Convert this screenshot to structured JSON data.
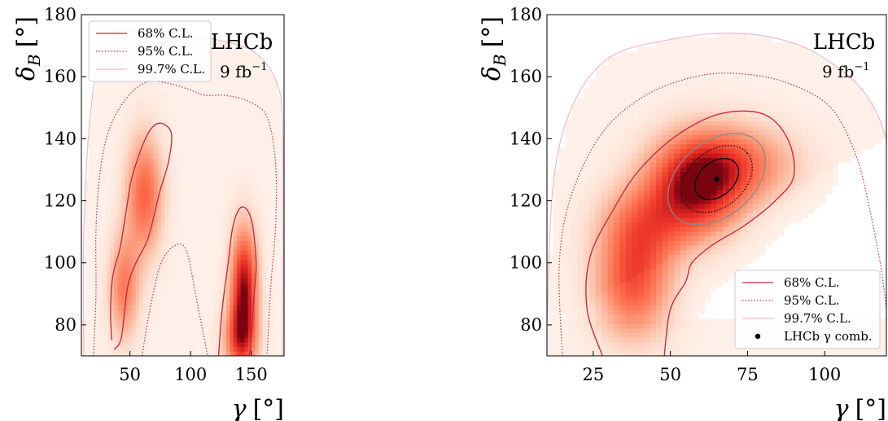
{
  "chart_data": [
    {
      "type": "heatmap",
      "panel": "left",
      "x_symbol": "γ",
      "x_unit": "[°]",
      "y_symbol": "δ",
      "y_subscript": "B",
      "y_unit": "[°]",
      "xlim": [
        10,
        177
      ],
      "ylim": [
        70,
        180
      ],
      "xticks": [
        50,
        100,
        150
      ],
      "yticks": [
        80,
        100,
        120,
        140,
        160,
        180
      ],
      "experiment": "LHCb",
      "luminosity": "9 fb",
      "luminosity_exp": "−1",
      "legend_position": "upper-left",
      "legend": [
        {
          "label": "68% C.L.",
          "style": "solid",
          "color": "#c8243c"
        },
        {
          "label": "95% C.L.",
          "style": "dotted",
          "color": "#c8243c"
        },
        {
          "label": "99.7% C.L.",
          "style": "solid",
          "color": "#f5b8c8"
        }
      ],
      "peaks": [
        {
          "x": 62,
          "y": 122,
          "sx": 11,
          "sy": 14,
          "w": 0.62
        },
        {
          "x": 45,
          "y": 92,
          "sx": 9,
          "sy": 12,
          "w": 0.52
        },
        {
          "x": 144,
          "y": 92,
          "sx": 8,
          "sy": 14,
          "w": 0.95
        },
        {
          "x": 140,
          "y": 75,
          "sx": 10,
          "sy": 8,
          "w": 0.55
        }
      ],
      "contours": {
        "cl68": [
          [
            [
              37,
              72
            ],
            [
              43,
              76
            ],
            [
              48,
              92
            ],
            [
              55,
              100
            ],
            [
              65,
              108
            ],
            [
              74,
              122
            ],
            [
              82,
              133
            ],
            [
              84,
              142
            ],
            [
              74,
              145
            ],
            [
              64,
              141
            ],
            [
              52,
              128
            ],
            [
              47,
              117
            ],
            [
              42,
              105
            ],
            [
              36,
              96
            ],
            [
              34,
              85
            ],
            [
              35,
              75
            ]
          ],
          [
            [
              123,
              70
            ],
            [
              126,
              85
            ],
            [
              131,
              100
            ],
            [
              135,
              112
            ],
            [
              142,
              118
            ],
            [
              150,
              114
            ],
            [
              154,
              100
            ],
            [
              152,
              88
            ],
            [
              150,
              75
            ],
            [
              148,
              70
            ]
          ]
        ],
        "cl95": [
          [
            [
              20,
              70
            ],
            [
              22,
              90
            ],
            [
              22,
              110
            ],
            [
              25,
              128
            ],
            [
              32,
              142
            ],
            [
              45,
              152
            ],
            [
              62,
              158
            ],
            [
              80,
              158
            ],
            [
              98,
              156
            ],
            [
              112,
              154
            ],
            [
              128,
              154
            ],
            [
              148,
              152
            ],
            [
              163,
              147
            ],
            [
              170,
              132
            ],
            [
              170,
              112
            ],
            [
              166,
              92
            ],
            [
              163,
              70
            ]
          ],
          [
            [
              60,
              70
            ],
            [
              66,
              84
            ],
            [
              74,
              98
            ],
            [
              82,
              104
            ],
            [
              92,
              106
            ],
            [
              98,
              102
            ],
            [
              104,
              90
            ],
            [
              110,
              78
            ],
            [
              114,
              70
            ]
          ]
        ],
        "cl997": [
          [
            [
              12,
              70
            ],
            [
              12,
              110
            ],
            [
              18,
              150
            ],
            [
              30,
              172
            ],
            [
              50,
              175
            ],
            [
              80,
              174
            ],
            [
              120,
              172
            ],
            [
              152,
              168
            ],
            [
              171,
              158
            ],
            [
              176,
              140
            ],
            [
              176,
              70
            ]
          ]
        ]
      }
    },
    {
      "type": "heatmap",
      "panel": "right",
      "x_symbol": "γ",
      "x_unit": "[°]",
      "y_symbol": "δ",
      "y_subscript": "B",
      "y_unit": "[°]",
      "xlim": [
        10,
        120
      ],
      "ylim": [
        70,
        180
      ],
      "xticks": [
        25,
        50,
        75,
        100
      ],
      "yticks": [
        80,
        100,
        120,
        140,
        160,
        180
      ],
      "experiment": "LHCb",
      "luminosity": "9 fb",
      "luminosity_exp": "−1",
      "legend_position": "lower-right",
      "legend": [
        {
          "label": "68% C.L.",
          "style": "solid",
          "color": "#c8243c"
        },
        {
          "label": "95% C.L.",
          "style": "dotted",
          "color": "#c8243c"
        },
        {
          "label": "99.7% C.L.",
          "style": "solid",
          "color": "#f5b8c8"
        },
        {
          "label": "LHCb γ comb.",
          "style": "marker",
          "color": "#000000"
        }
      ],
      "peaks": [
        {
          "x": 58,
          "y": 124,
          "sx": 11,
          "sy": 12,
          "w": 0.85
        },
        {
          "x": 38,
          "y": 92,
          "sx": 9,
          "sy": 12,
          "w": 0.65
        },
        {
          "x": 72,
          "y": 132,
          "sx": 14,
          "sy": 9,
          "w": 0.5
        },
        {
          "x": 40,
          "y": 112,
          "sx": 10,
          "sy": 10,
          "w": 0.45
        }
      ],
      "contours": {
        "cl68": [
          [
            [
              28,
              70
            ],
            [
              23,
              85
            ],
            [
              24,
              102
            ],
            [
              32,
              118
            ],
            [
              40,
              130
            ],
            [
              52,
              141
            ],
            [
              66,
              148
            ],
            [
              80,
              148
            ],
            [
              88,
              140
            ],
            [
              90,
              128
            ],
            [
              84,
              120
            ],
            [
              74,
              112
            ],
            [
              64,
              106
            ],
            [
              57,
              100
            ],
            [
              55,
              94
            ],
            [
              50,
              85
            ],
            [
              48,
              70
            ]
          ]
        ],
        "cl95": [
          [
            [
              15,
              70
            ],
            [
              14,
              100
            ],
            [
              18,
              122
            ],
            [
              28,
              142
            ],
            [
              42,
              154
            ],
            [
              58,
              160
            ],
            [
              72,
              161
            ],
            [
              88,
              158
            ],
            [
              102,
              150
            ],
            [
              110,
              135
            ],
            [
              114,
              120
            ],
            [
              118,
              100
            ],
            [
              120,
              85
            ]
          ]
        ],
        "cl997": [
          [
            [
              10,
              80
            ],
            [
              12,
              125
            ],
            [
              18,
              150
            ],
            [
              30,
              166
            ],
            [
              50,
              172
            ],
            [
              72,
              174
            ],
            [
              92,
              170
            ],
            [
              108,
              160
            ],
            [
              116,
              150
            ],
            [
              120,
              140
            ]
          ]
        ]
      },
      "comb_contours": [
        {
          "cx": 65,
          "cy": 127,
          "rx": 8,
          "ry": 5.5,
          "angle": 40,
          "color": "#000000",
          "style": "solid"
        },
        {
          "cx": 65,
          "cy": 127,
          "rx": 13,
          "ry": 9,
          "angle": 40,
          "color": "#000000",
          "style": "dotted"
        },
        {
          "cx": 65,
          "cy": 127,
          "rx": 18,
          "ry": 12,
          "angle": 40,
          "color": "#8a8a8a",
          "style": "solid"
        }
      ],
      "marker": {
        "x": 65,
        "y": 127
      }
    }
  ]
}
